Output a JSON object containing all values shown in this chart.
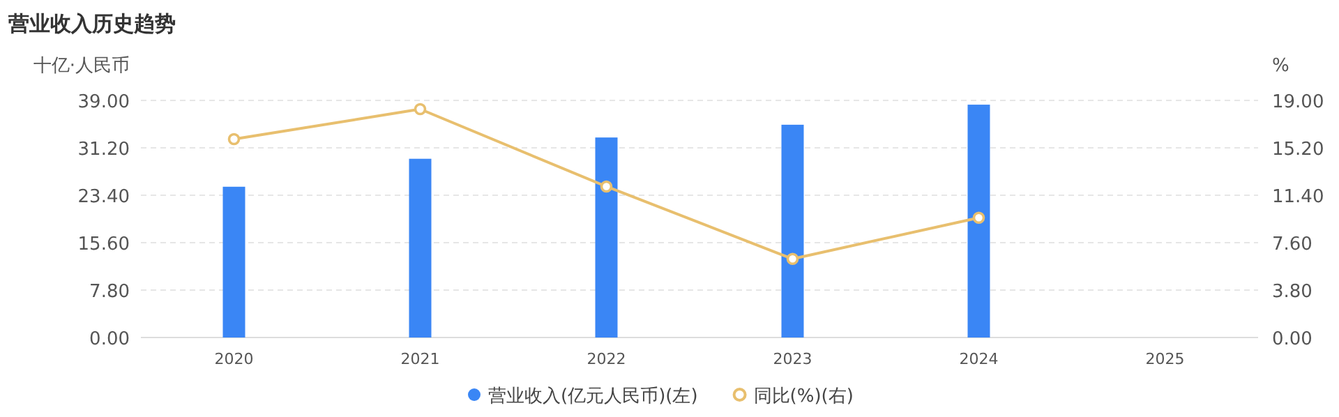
{
  "chart_data": {
    "type": "bar",
    "title": "营业收入历史趋势",
    "ylabel": "十亿·人民币",
    "y2label": "%",
    "categories": [
      "2020",
      "2021",
      "2022",
      "2023",
      "2024",
      "2025"
    ],
    "series": [
      {
        "name": "营业收入(亿元人民币)(左)",
        "color": "#3a86f5",
        "values": [
          24.8,
          29.4,
          32.9,
          35.0,
          38.3,
          null
        ]
      },
      {
        "name": "同比(%)(右)",
        "type": "line",
        "axis": "y2",
        "color": "#e8bf6e",
        "marker": "circle",
        "values": [
          15.9,
          18.3,
          12.1,
          6.3,
          9.6,
          null
        ]
      }
    ],
    "ylim": [
      0,
      39
    ],
    "yticks": [
      {
        "value": 0,
        "label": "0.00"
      },
      {
        "value": 7.8,
        "label": "7.80"
      },
      {
        "value": 15.6,
        "label": "15.60"
      },
      {
        "value": 23.4,
        "label": "23.40"
      },
      {
        "value": 31.2,
        "label": "31.20"
      },
      {
        "value": 39,
        "label": "39.00"
      }
    ],
    "y2lim": [
      0,
      19
    ],
    "y2ticks": [
      {
        "value": 0,
        "label": "0.00"
      },
      {
        "value": 3.8,
        "label": "3.80"
      },
      {
        "value": 7.6,
        "label": "7.60"
      },
      {
        "value": 11.4,
        "label": "11.40"
      },
      {
        "value": 15.2,
        "label": "15.20"
      },
      {
        "value": 19,
        "label": "19.00"
      }
    ],
    "grid": "y",
    "legend": "bottom"
  }
}
